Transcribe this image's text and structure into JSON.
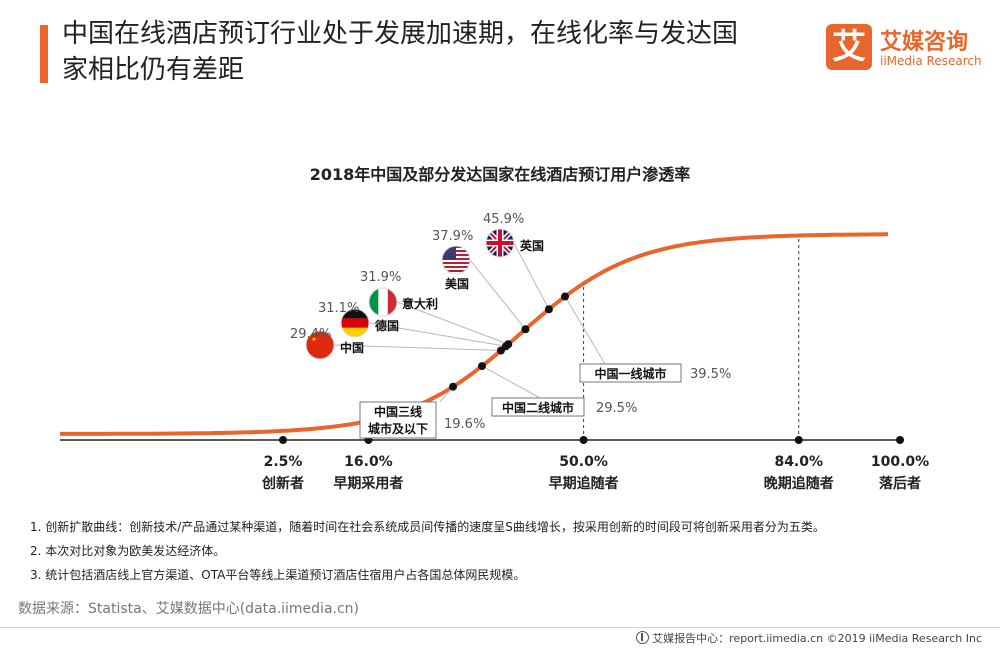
{
  "header": {
    "title": "中国在线酒店预订行业处于发展加速期，在线化率与发达国家相比仍有差距",
    "logo_mark": "艾",
    "logo_cn": "艾媒咨询",
    "logo_en": "iiMedia Research"
  },
  "colors": {
    "accent": "#e8652b",
    "curve": "#e8652b",
    "guide": "#b8b8b8"
  },
  "chart_data": {
    "type": "line",
    "title": "2018年中国及部分发达国家在线酒店预订用户渗透率",
    "x_scale": "cumulative adoption share (%)",
    "categories": [
      {
        "pct": 2.5,
        "pct_label": "2.5%",
        "label": "创新者"
      },
      {
        "pct": 16.0,
        "pct_label": "16.0%",
        "label": "早期采用者"
      },
      {
        "pct": 50.0,
        "pct_label": "50.0%",
        "label": "早期追随者"
      },
      {
        "pct": 84.0,
        "pct_label": "84.0%",
        "label": "晚期追随者"
      },
      {
        "pct": 100.0,
        "pct_label": "100.0%",
        "label": "落后者"
      }
    ],
    "countries": [
      {
        "name": "中国",
        "value": 29.4,
        "value_label": "29.4%",
        "flag": "china-flag"
      },
      {
        "name": "德国",
        "value": 31.1,
        "value_label": "31.1%",
        "flag": "germany-flag"
      },
      {
        "name": "意大利",
        "value": 31.9,
        "value_label": "31.9%",
        "flag": "italy-flag"
      },
      {
        "name": "美国",
        "value": 37.9,
        "value_label": "37.9%",
        "flag": "usa-flag"
      },
      {
        "name": "英国",
        "value": 45.9,
        "value_label": "45.9%",
        "flag": "uk-flag"
      }
    ],
    "china_tiers": [
      {
        "name": "中国一线城市",
        "value": 39.5,
        "value_label": "39.5%"
      },
      {
        "name": "中国二线城市",
        "value": 29.5,
        "value_label": "29.5%"
      },
      {
        "name": "中国三线城市及以下",
        "name_lines": [
          "中国三线",
          "城市及以下"
        ],
        "value": 19.6,
        "value_label": "19.6%"
      }
    ],
    "grid": false,
    "legend": "none"
  },
  "notes": [
    "1. 创新扩散曲线：创新技术/产品通过某种渠道，随着时间在社会系统成员间传播的速度呈S曲线增长，按采用创新的时间段可将创新采用者分为五类。",
    "2. 本次对比对象为欧美发达经济体。",
    "3. 统计包括酒店线上官方渠道、OTA平台等线上渠道预订酒店住宿用户占各国总体网民规模。"
  ],
  "source": "数据来源：Statista、艾媒数据中心(data.iimedia.cn)",
  "footer": "艾媒报告中心：report.iimedia.cn  ©2019  iiMedia Research  Inc"
}
